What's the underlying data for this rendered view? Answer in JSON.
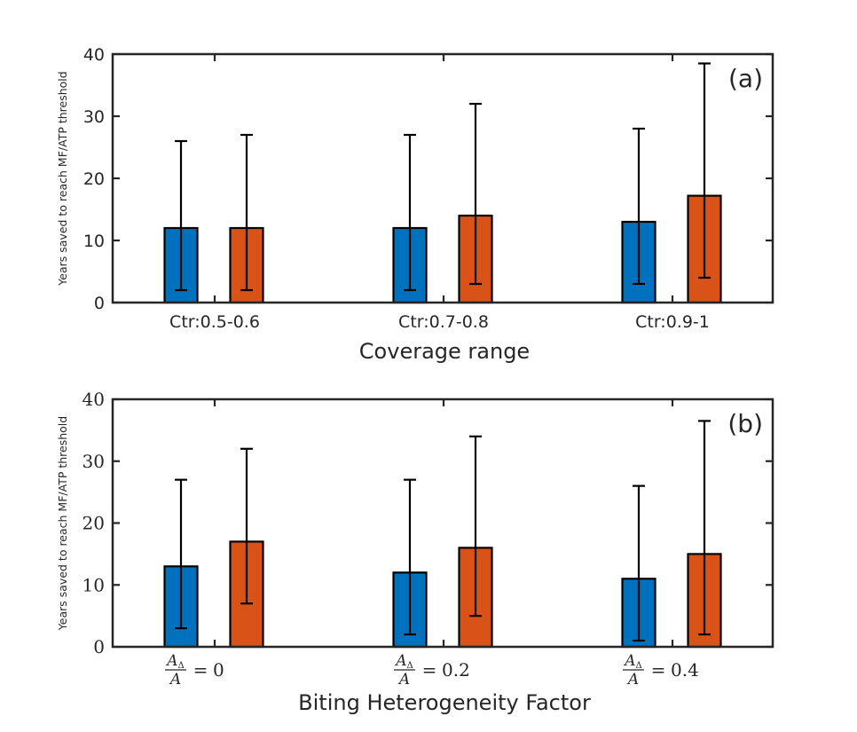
{
  "chart_data": [
    {
      "panel": "(a)",
      "type": "bar",
      "xlabel": "Coverage range",
      "ylabel": "Years saved to reach MF/ATP threshold",
      "ylim": [
        0,
        40
      ],
      "yticks": [
        "0",
        "10",
        "20",
        "30",
        "40"
      ],
      "categories": [
        "Ctr:0.5-0.6",
        "Ctr:0.7-0.8",
        "Ctr:0.9-1"
      ],
      "series": [
        {
          "color": "#0072BD",
          "values": [
            12,
            12,
            13
          ],
          "err_low": [
            2,
            2,
            3
          ],
          "err_high": [
            26,
            27,
            28
          ]
        },
        {
          "color": "#D95319",
          "values": [
            12,
            14,
            17.2
          ],
          "err_low": [
            2,
            3,
            4
          ],
          "err_high": [
            27,
            32,
            38.5
          ]
        }
      ],
      "grid": false
    },
    {
      "panel": "(b)",
      "type": "bar",
      "xlabel": "Biting Heterogeneity Factor",
      "ylabel": "Years saved to reach MF/ATP threshold",
      "ylim": [
        0,
        40
      ],
      "yticks": [
        "0",
        "10",
        "20",
        "30",
        "40"
      ],
      "categories": [
        "0",
        "0.2",
        "0.4"
      ],
      "category_prefix": {
        "numerator": "A",
        "numerator_sub": "Δ",
        "denominator": "A",
        "equals": "="
      },
      "series": [
        {
          "color": "#0072BD",
          "values": [
            13,
            12,
            11
          ],
          "err_low": [
            3,
            2,
            1
          ],
          "err_high": [
            27,
            27,
            26
          ]
        },
        {
          "color": "#D95319",
          "values": [
            17,
            16,
            15
          ],
          "err_low": [
            7,
            5,
            2
          ],
          "err_high": [
            32,
            34,
            36.5
          ]
        }
      ],
      "grid": false
    }
  ]
}
